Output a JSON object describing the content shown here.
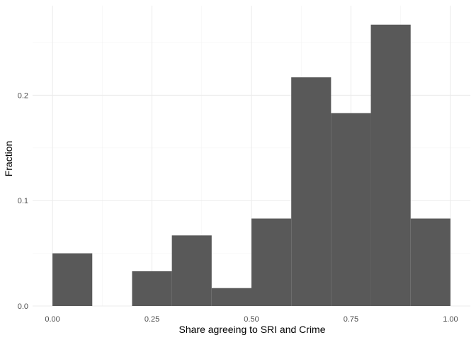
{
  "chart_data": {
    "type": "bar",
    "subtype": "histogram",
    "title": "",
    "xlabel": "Share agreeing to SRI and Crime",
    "ylabel": "Fraction",
    "xlim": [
      -0.05,
      1.05
    ],
    "ylim": [
      0,
      0.285
    ],
    "grid": true,
    "bar_color": "#595959",
    "bins": [
      {
        "x0": 0.0,
        "x1": 0.1,
        "value": 0.05
      },
      {
        "x0": 0.1,
        "x1": 0.2,
        "value": 0.0
      },
      {
        "x0": 0.2,
        "x1": 0.3,
        "value": 0.033
      },
      {
        "x0": 0.3,
        "x1": 0.4,
        "value": 0.067
      },
      {
        "x0": 0.4,
        "x1": 0.5,
        "value": 0.017
      },
      {
        "x0": 0.5,
        "x1": 0.6,
        "value": 0.083
      },
      {
        "x0": 0.6,
        "x1": 0.7,
        "value": 0.217
      },
      {
        "x0": 0.7,
        "x1": 0.8,
        "value": 0.183
      },
      {
        "x0": 0.8,
        "x1": 0.9,
        "value": 0.267
      },
      {
        "x0": 0.9,
        "x1": 1.0,
        "value": 0.083
      }
    ],
    "x_ticks": [
      {
        "value": 0.0,
        "label": "0.00"
      },
      {
        "value": 0.25,
        "label": "0.25"
      },
      {
        "value": 0.5,
        "label": "0.50"
      },
      {
        "value": 0.75,
        "label": "0.75"
      },
      {
        "value": 1.0,
        "label": "1.00"
      }
    ],
    "x_minor_ticks": [
      0.125,
      0.375,
      0.625,
      0.875
    ],
    "y_ticks": [
      {
        "value": 0.0,
        "label": "0.0"
      },
      {
        "value": 0.1,
        "label": "0.1"
      },
      {
        "value": 0.2,
        "label": "0.2"
      }
    ],
    "y_minor_ticks": [
      0.05,
      0.15,
      0.25
    ]
  }
}
